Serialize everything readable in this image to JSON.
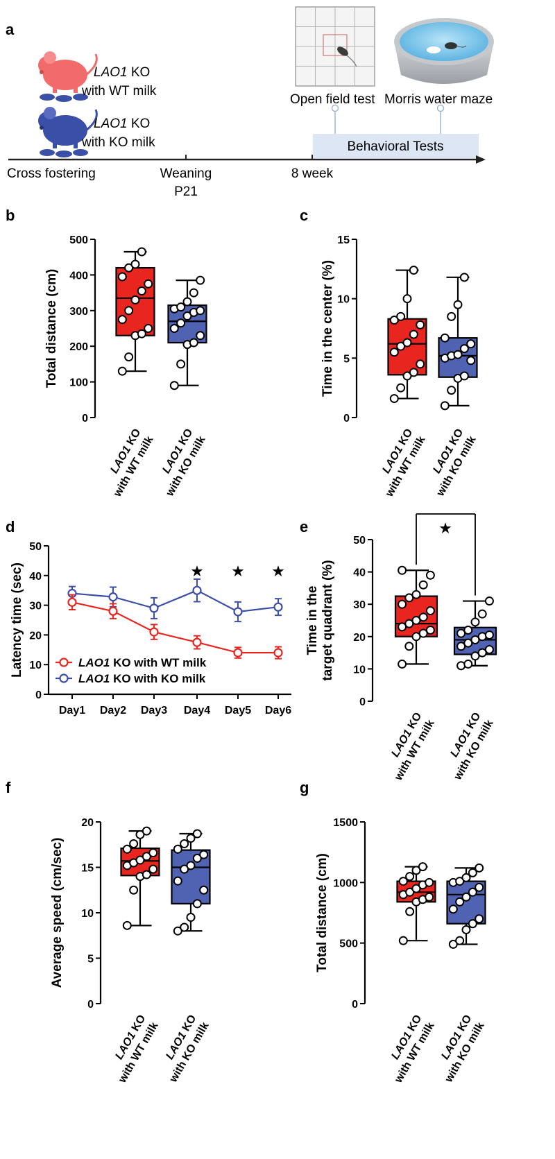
{
  "panels": {
    "a": "a",
    "b": "b",
    "c": "c",
    "d": "d",
    "e": "e",
    "f": "f",
    "g": "g"
  },
  "schematic": {
    "group1": {
      "gene": "LAO1",
      "line1_rest": " KO",
      "line2": "with WT milk"
    },
    "group2": {
      "gene": "LAO1",
      "line1_rest": " KO",
      "line2": "with KO milk"
    },
    "timeline": {
      "cross_fostering": "Cross fostering",
      "weaning": "Weaning",
      "weaning_day": "P21",
      "week8": "8 week"
    },
    "tests": {
      "open_field": "Open field test",
      "water_maze": "Morris water maze",
      "behavioral": "Behavioral Tests"
    },
    "colors": {
      "wt": "#f05a5a",
      "ko": "#3a4fa8",
      "pool": "#7ec6ea"
    }
  },
  "categories": {
    "wt": {
      "gene": "LAO1",
      "rest": " KO",
      "line2": "with WT milk"
    },
    "ko": {
      "gene": "LAO1",
      "rest": " KO",
      "line2": "with KO milk"
    }
  },
  "colors": {
    "wt_box": "#e8261f",
    "ko_box": "#5062b2",
    "wt_line": "#e8261f",
    "ko_line": "#3c4fa8"
  },
  "chart_data": [
    {
      "panel": "b",
      "type": "box",
      "ylabel": "Total distance (cm)",
      "ylim": [
        0,
        500
      ],
      "yticks": [
        0,
        100,
        200,
        300,
        400,
        500
      ],
      "series": [
        {
          "name": "LAO1 KO with WT milk",
          "min": 130,
          "q1": 230,
          "median": 335,
          "q3": 420,
          "max": 465,
          "points": [
            130,
            170,
            230,
            235,
            250,
            275,
            300,
            330,
            355,
            375,
            395,
            420,
            430,
            465
          ]
        },
        {
          "name": "LAO1 KO with KO milk",
          "min": 90,
          "q1": 210,
          "median": 270,
          "q3": 315,
          "max": 385,
          "points": [
            90,
            150,
            205,
            210,
            230,
            250,
            265,
            285,
            295,
            300,
            305,
            310,
            325,
            350,
            385
          ]
        }
      ]
    },
    {
      "panel": "c",
      "type": "box",
      "ylabel": "Time in the center (%)",
      "ylim": [
        0,
        15
      ],
      "yticks": [
        0,
        5,
        10,
        15
      ],
      "series": [
        {
          "name": "LAO1 KO with WT milk",
          "min": 1.6,
          "q1": 3.6,
          "median": 6.2,
          "q3": 8.3,
          "max": 12.4,
          "points": [
            1.6,
            2.5,
            3.5,
            3.8,
            4.5,
            5.5,
            6.0,
            6.3,
            7.0,
            7.8,
            8.2,
            8.5,
            10.0,
            12.4
          ]
        },
        {
          "name": "LAO1 KO with KO milk",
          "min": 1.0,
          "q1": 3.4,
          "median": 5.2,
          "q3": 6.7,
          "max": 11.8,
          "points": [
            1.0,
            2.3,
            3.3,
            3.5,
            4.8,
            5.0,
            5.2,
            5.3,
            5.8,
            6.2,
            6.7,
            8.5,
            9.5,
            11.8
          ]
        }
      ]
    },
    {
      "panel": "d",
      "type": "line",
      "ylabel": "Latency time (sec)",
      "ylim": [
        0,
        50
      ],
      "yticks": [
        0,
        10,
        20,
        30,
        40,
        50
      ],
      "categories": [
        "Day1",
        "Day2",
        "Day3",
        "Day4",
        "Day5",
        "Day6"
      ],
      "series": [
        {
          "name": "LAO1 KO with WT milk",
          "values": [
            31,
            28,
            21,
            17.5,
            14,
            14
          ],
          "err": [
            2.5,
            2.5,
            2.5,
            2.2,
            1.8,
            2
          ]
        },
        {
          "name": "LAO1 KO with KO milk",
          "values": [
            34,
            32.8,
            29,
            35,
            27.8,
            29.4
          ],
          "err": [
            2.3,
            3.3,
            3.5,
            3.8,
            3.3,
            2.8
          ]
        }
      ],
      "significant_days": [
        "Day4",
        "Day5",
        "Day6"
      ],
      "significance_mark": "★"
    },
    {
      "panel": "e",
      "type": "box",
      "ylabel_line1": "Time in the",
      "ylabel_line2": "target quadrant (%)",
      "ylim": [
        0,
        50
      ],
      "yticks": [
        0,
        10,
        20,
        30,
        40,
        50
      ],
      "significance_mark": "★",
      "series": [
        {
          "name": "LAO1 KO with WT milk",
          "min": 11.5,
          "q1": 20,
          "median": 24,
          "q3": 32.5,
          "max": 40.5,
          "points": [
            11.5,
            17,
            20,
            21,
            22,
            23,
            24,
            25,
            26,
            28,
            30,
            32,
            33,
            36,
            39,
            40.5
          ]
        },
        {
          "name": "LAO1 KO with KO milk",
          "min": 11,
          "q1": 14.5,
          "median": 19,
          "q3": 22.8,
          "max": 31,
          "points": [
            11,
            11.5,
            14,
            15,
            16,
            17,
            18,
            19,
            20,
            20.5,
            21,
            22,
            24.5,
            27,
            31
          ]
        }
      ]
    },
    {
      "panel": "f",
      "type": "box",
      "ylabel": "Average speed (cm/sec)",
      "ylim": [
        0,
        20
      ],
      "yticks": [
        0,
        5,
        10,
        15,
        20
      ],
      "series": [
        {
          "name": "LAO1 KO with WT milk",
          "min": 8.6,
          "q1": 14.1,
          "median": 15.7,
          "q3": 17.1,
          "max": 19,
          "points": [
            8.6,
            12.5,
            14,
            14.2,
            14.8,
            15.2,
            15.5,
            15.8,
            16.2,
            16.6,
            17,
            17.6,
            18.6,
            19
          ]
        },
        {
          "name": "LAO1 KO with KO milk",
          "min": 8,
          "q1": 11,
          "median": 15,
          "q3": 16.9,
          "max": 18.7,
          "points": [
            8,
            8.4,
            9.5,
            11,
            12.5,
            13.5,
            14.8,
            15.2,
            16,
            16.4,
            17,
            17.6,
            18.2,
            18.7
          ]
        }
      ]
    },
    {
      "panel": "g",
      "type": "box",
      "ylabel": "Total distance (cm)",
      "ylim": [
        0,
        1500
      ],
      "yticks": [
        0,
        500,
        1000,
        1500
      ],
      "series": [
        {
          "name": "LAO1 KO with WT milk",
          "min": 520,
          "q1": 840,
          "median": 920,
          "q3": 1010,
          "max": 1130,
          "points": [
            520,
            760,
            840,
            860,
            880,
            900,
            920,
            950,
            980,
            1000,
            1010,
            1050,
            1100,
            1130
          ]
        },
        {
          "name": "LAO1 KO with KO milk",
          "min": 490,
          "q1": 660,
          "median": 900,
          "q3": 1010,
          "max": 1120,
          "points": [
            490,
            520,
            610,
            660,
            700,
            780,
            840,
            880,
            920,
            960,
            1000,
            1010,
            1040,
            1080,
            1120
          ]
        }
      ]
    }
  ]
}
